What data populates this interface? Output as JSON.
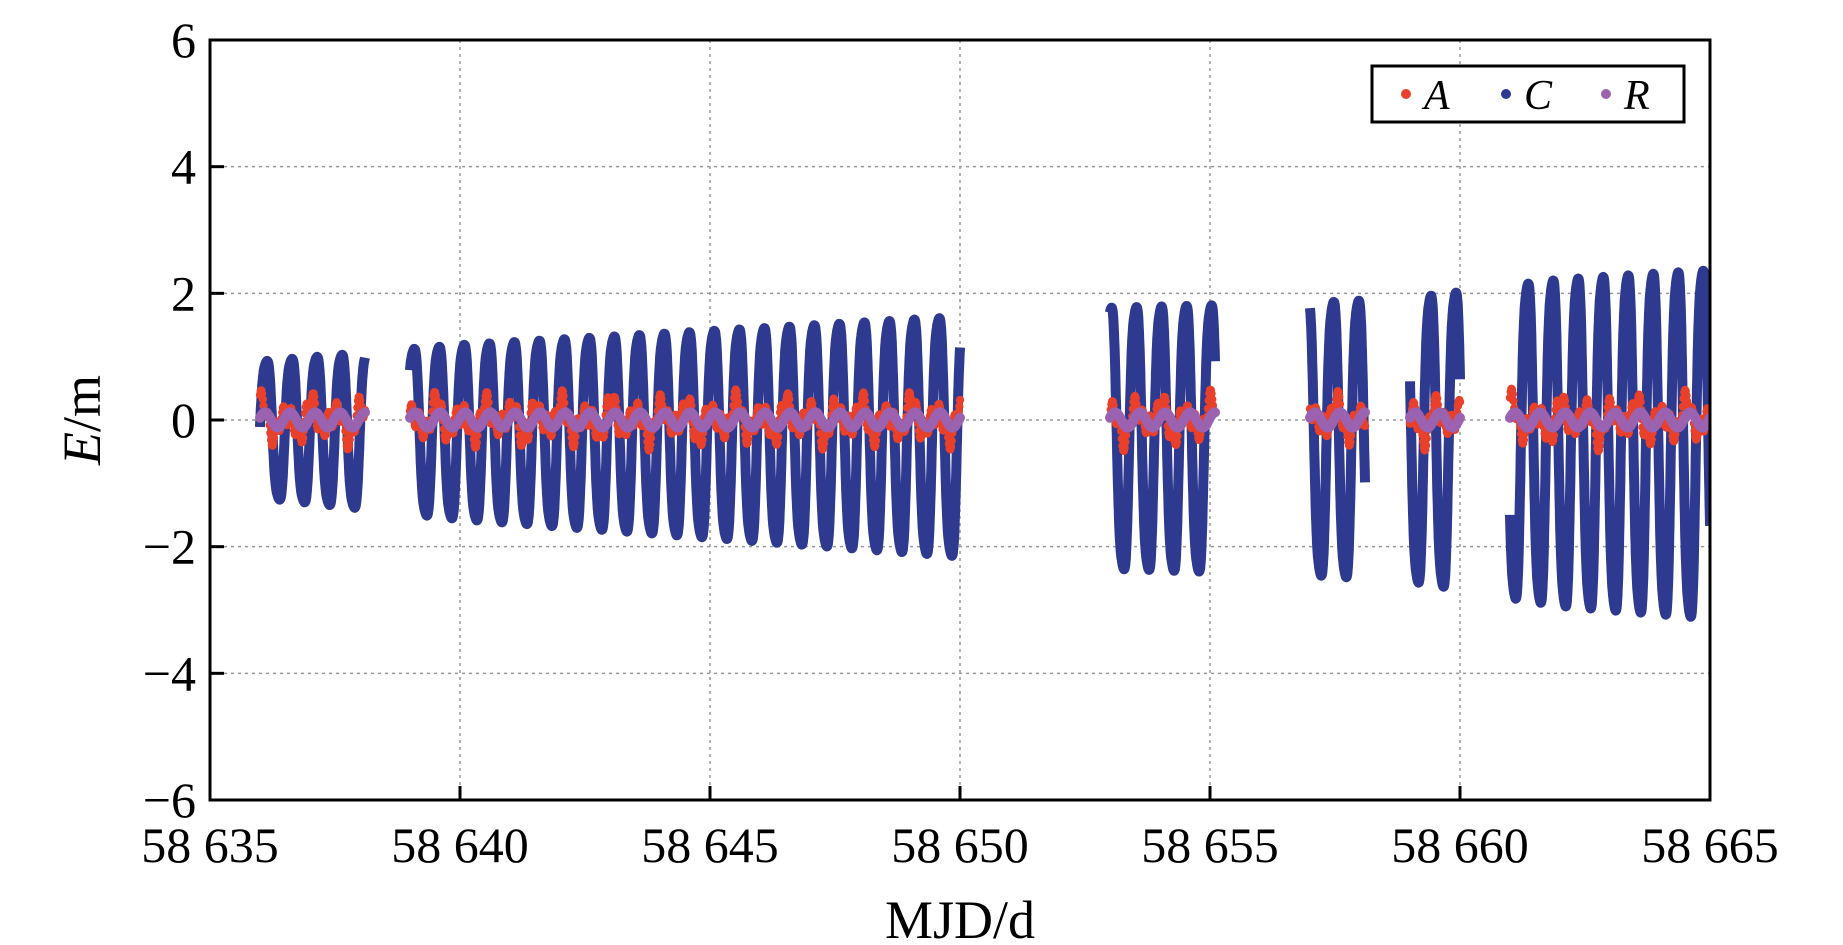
{
  "chart_data": {
    "type": "scatter",
    "title": "",
    "xlabel": "MJD/d",
    "ylabel_italic": "E",
    "ylabel_unit": "/m",
    "xlim": [
      58635,
      58665
    ],
    "ylim": [
      -6,
      6
    ],
    "x_ticks": [
      58635,
      58640,
      58645,
      58650,
      58655,
      58660,
      58665
    ],
    "x_tick_labels": [
      "58 635",
      "58 640",
      "58 645",
      "58 650",
      "58 655",
      "58 660",
      "58 665"
    ],
    "y_ticks": [
      -6,
      -4,
      -2,
      0,
      2,
      4,
      6
    ],
    "y_tick_labels": [
      "−6",
      "−4",
      "−2",
      "0",
      "2",
      "4",
      "6"
    ],
    "grid": true,
    "legend_position": "top-right",
    "data_segments": [
      [
        58636.0,
        58638.1
      ],
      [
        58639.0,
        58650.0
      ],
      [
        58653.0,
        58655.1
      ],
      [
        58657.0,
        58658.1
      ],
      [
        58659.0,
        58660.0
      ],
      [
        58661.0,
        58665.0
      ]
    ],
    "series": [
      {
        "name": "A",
        "color": "#e8402a",
        "baseline": 0.0,
        "oscillation_amplitude": 0.35,
        "samples_per_day": 24
      },
      {
        "name": "C",
        "color": "#2e3a8f",
        "oscillation_period_days": 0.5,
        "envelope": [
          {
            "x": 58636,
            "amplitude": 1.25
          },
          {
            "x": 58640,
            "amplitude": 1.6
          },
          {
            "x": 58645,
            "amplitude": 1.9
          },
          {
            "x": 58650,
            "amplitude": 2.2
          },
          {
            "x": 58653,
            "amplitude": 2.4
          },
          {
            "x": 58657,
            "amplitude": 2.5
          },
          {
            "x": 58659,
            "amplitude": 2.6
          },
          {
            "x": 58662,
            "amplitude": 3.0
          },
          {
            "x": 58665,
            "amplitude": 3.2
          }
        ]
      },
      {
        "name": "R",
        "color": "#9b62b0",
        "baseline": 0.0,
        "oscillation_amplitude": 0.12,
        "samples_per_day": 24
      }
    ]
  }
}
